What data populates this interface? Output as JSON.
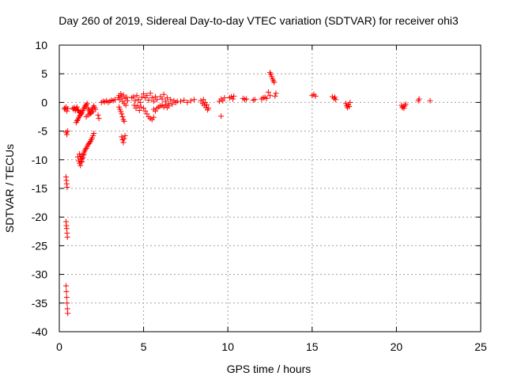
{
  "chart_data": {
    "type": "scatter",
    "title": "Day 260 of 2019, Sidereal Day-to-day VTEC variation (SDTVAR) for receiver ohi3",
    "xlabel": "GPS time / hours",
    "ylabel": "SDTVAR / TECUs",
    "xlim": [
      0,
      25
    ],
    "ylim": [
      -40,
      10
    ],
    "x_ticks": [
      0,
      5,
      10,
      15,
      20,
      25
    ],
    "x_tick_labels": [
      "0",
      "5",
      "10",
      "15",
      "20",
      "25"
    ],
    "y_ticks": [
      10,
      5,
      0,
      -5,
      -10,
      -15,
      -20,
      -25,
      -30,
      -35,
      -40
    ],
    "y_tick_labels": [
      "10",
      "5",
      "0",
      "-5",
      "-10",
      "-15",
      "-20",
      "-25",
      "-30",
      "-35",
      "-40"
    ],
    "grid": true,
    "marker": "+",
    "color": "#ff0000",
    "series": [
      {
        "name": "SDTVAR",
        "points": [
          [
            0.3,
            -1.0
          ],
          [
            0.35,
            -1.2
          ],
          [
            0.4,
            -0.8
          ],
          [
            0.45,
            -1.5
          ],
          [
            0.5,
            -1.1
          ],
          [
            0.4,
            -5.2
          ],
          [
            0.45,
            -5.6
          ],
          [
            0.5,
            -5.0
          ],
          [
            0.4,
            -13.0
          ],
          [
            0.42,
            -13.6
          ],
          [
            0.44,
            -14.2
          ],
          [
            0.46,
            -14.8
          ],
          [
            0.4,
            -20.8
          ],
          [
            0.42,
            -21.5
          ],
          [
            0.44,
            -22.0
          ],
          [
            0.46,
            -22.8
          ],
          [
            0.48,
            -23.5
          ],
          [
            0.4,
            -32.0
          ],
          [
            0.42,
            -33.0
          ],
          [
            0.44,
            -34.0
          ],
          [
            0.46,
            -35.0
          ],
          [
            0.48,
            -36.0
          ],
          [
            0.5,
            -36.8
          ],
          [
            0.8,
            -1.0
          ],
          [
            0.85,
            -1.2
          ],
          [
            0.9,
            -0.9
          ],
          [
            0.95,
            -1.4
          ],
          [
            1.0,
            -1.1
          ],
          [
            1.05,
            -0.8
          ],
          [
            1.1,
            -1.3
          ],
          [
            1.15,
            -1.5
          ],
          [
            1.2,
            -1.8
          ],
          [
            1.25,
            -1.6
          ],
          [
            1.3,
            -1.9
          ],
          [
            1.0,
            -3.5
          ],
          [
            1.05,
            -3.2
          ],
          [
            1.1,
            -3.0
          ],
          [
            1.15,
            -2.7
          ],
          [
            1.2,
            -2.4
          ],
          [
            1.25,
            -2.2
          ],
          [
            1.3,
            -2.0
          ],
          [
            1.35,
            -1.7
          ],
          [
            1.4,
            -1.4
          ],
          [
            1.45,
            -1.1
          ],
          [
            1.5,
            -0.8
          ],
          [
            1.55,
            -0.6
          ],
          [
            1.6,
            -0.4
          ],
          [
            1.65,
            -0.2
          ],
          [
            1.1,
            -9.5
          ],
          [
            1.15,
            -10.2
          ],
          [
            1.2,
            -10.6
          ],
          [
            1.25,
            -11.0
          ],
          [
            1.3,
            -10.4
          ],
          [
            1.35,
            -9.8
          ],
          [
            1.4,
            -9.2
          ],
          [
            1.45,
            -8.8
          ],
          [
            1.5,
            -8.5
          ],
          [
            1.55,
            -8.2
          ],
          [
            1.6,
            -8.0
          ],
          [
            1.65,
            -7.7
          ],
          [
            1.7,
            -7.4
          ],
          [
            1.75,
            -7.2
          ],
          [
            1.8,
            -7.0
          ],
          [
            1.85,
            -6.8
          ],
          [
            1.9,
            -6.5
          ],
          [
            1.95,
            -6.2
          ],
          [
            2.0,
            -5.8
          ],
          [
            2.05,
            -5.4
          ],
          [
            1.2,
            -9.0
          ],
          [
            1.25,
            -9.4
          ],
          [
            1.3,
            -9.9
          ],
          [
            1.35,
            -10.3
          ],
          [
            1.4,
            -9.6
          ],
          [
            1.45,
            -9.1
          ],
          [
            1.7,
            -1.0
          ],
          [
            1.75,
            -1.3
          ],
          [
            1.8,
            -1.6
          ],
          [
            1.85,
            -1.9
          ],
          [
            1.9,
            -1.5
          ],
          [
            1.95,
            -1.2
          ],
          [
            2.0,
            -0.9
          ],
          [
            2.05,
            -0.6
          ],
          [
            2.1,
            -0.9
          ],
          [
            2.15,
            -1.2
          ],
          [
            1.6,
            -2.5
          ],
          [
            1.7,
            -2.2
          ],
          [
            1.8,
            -2.0
          ],
          [
            1.9,
            -1.8
          ],
          [
            2.0,
            -1.6
          ],
          [
            2.3,
            -2.2
          ],
          [
            2.35,
            -2.8
          ],
          [
            2.5,
            0.0
          ],
          [
            2.6,
            0.2
          ],
          [
            2.7,
            0.1
          ],
          [
            2.8,
            0.3
          ],
          [
            2.9,
            0.0
          ],
          [
            3.0,
            0.2
          ],
          [
            3.1,
            0.4
          ],
          [
            3.2,
            0.3
          ],
          [
            3.3,
            0.5
          ],
          [
            3.5,
            0.8
          ],
          [
            3.55,
            1.2
          ],
          [
            3.6,
            0.5
          ],
          [
            3.65,
            1.5
          ],
          [
            3.7,
            1.0
          ],
          [
            3.75,
            0.2
          ],
          [
            3.8,
            1.3
          ],
          [
            3.85,
            -0.2
          ],
          [
            3.9,
            0.7
          ],
          [
            3.95,
            -0.5
          ],
          [
            4.0,
            0.9
          ],
          [
            4.05,
            0.3
          ],
          [
            3.55,
            -0.8
          ],
          [
            3.6,
            -1.2
          ],
          [
            3.65,
            -1.6
          ],
          [
            3.7,
            -2.0
          ],
          [
            3.75,
            -2.5
          ],
          [
            3.8,
            -3.0
          ],
          [
            3.85,
            -3.3
          ],
          [
            3.7,
            -6.0
          ],
          [
            3.75,
            -6.5
          ],
          [
            3.8,
            -7.0
          ],
          [
            3.85,
            -6.3
          ],
          [
            3.9,
            -5.8
          ],
          [
            4.3,
            0.8
          ],
          [
            4.4,
            1.0
          ],
          [
            4.5,
            0.3
          ],
          [
            4.6,
            1.2
          ],
          [
            4.7,
            0.5
          ],
          [
            4.8,
            0.0
          ],
          [
            4.9,
            0.9
          ],
          [
            4.45,
            -0.5
          ],
          [
            4.55,
            -1.0
          ],
          [
            4.65,
            -0.6
          ],
          [
            4.75,
            -1.4
          ],
          [
            4.85,
            -0.8
          ],
          [
            5.0,
            1.5
          ],
          [
            5.1,
            0.8
          ],
          [
            5.2,
            1.2
          ],
          [
            5.3,
            0.4
          ],
          [
            5.4,
            1.6
          ],
          [
            5.5,
            0.8
          ],
          [
            5.6,
            0.2
          ],
          [
            5.7,
            1.0
          ],
          [
            5.8,
            0.5
          ],
          [
            5.0,
            -1.0
          ],
          [
            5.1,
            -1.5
          ],
          [
            5.2,
            -2.0
          ],
          [
            5.3,
            -2.5
          ],
          [
            5.4,
            -2.8
          ],
          [
            5.5,
            -3.0
          ],
          [
            5.6,
            -2.6
          ],
          [
            5.6,
            -1.2
          ],
          [
            5.7,
            -1.5
          ],
          [
            5.8,
            -1.0
          ],
          [
            5.9,
            -0.8
          ],
          [
            6.0,
            -0.6
          ],
          [
            6.0,
            1.0
          ],
          [
            6.1,
            0.6
          ],
          [
            6.2,
            1.4
          ],
          [
            6.3,
            0.2
          ],
          [
            6.4,
            0.8
          ],
          [
            6.5,
            -0.2
          ],
          [
            6.6,
            0.5
          ],
          [
            6.7,
            -0.3
          ],
          [
            6.8,
            0.3
          ],
          [
            6.9,
            0.0
          ],
          [
            7.0,
            0.2
          ],
          [
            6.1,
            -0.5
          ],
          [
            6.2,
            -0.8
          ],
          [
            6.3,
            -0.4
          ],
          [
            6.4,
            -0.9
          ],
          [
            6.5,
            -0.6
          ],
          [
            7.2,
            0.2
          ],
          [
            7.4,
            0.4
          ],
          [
            7.6,
            0.0
          ],
          [
            7.8,
            0.3
          ],
          [
            8.0,
            0.5
          ],
          [
            8.4,
            0.3
          ],
          [
            8.5,
            -0.2
          ],
          [
            8.6,
            -0.5
          ],
          [
            8.7,
            -0.9
          ],
          [
            8.8,
            -1.3
          ],
          [
            8.55,
            0.5
          ],
          [
            8.65,
            0.0
          ],
          [
            8.75,
            -0.4
          ],
          [
            8.85,
            -1.0
          ],
          [
            9.6,
            -2.4
          ],
          [
            9.5,
            0.2
          ],
          [
            9.6,
            0.6
          ],
          [
            9.7,
            0.3
          ],
          [
            9.8,
            0.8
          ],
          [
            10.1,
            0.8
          ],
          [
            10.2,
            1.0
          ],
          [
            10.3,
            0.6
          ],
          [
            10.35,
            1.1
          ],
          [
            10.9,
            0.7
          ],
          [
            11.0,
            0.5
          ],
          [
            11.1,
            0.6
          ],
          [
            11.5,
            0.4
          ],
          [
            11.6,
            0.5
          ],
          [
            12.0,
            0.6
          ],
          [
            12.1,
            0.8
          ],
          [
            12.2,
            0.9
          ],
          [
            12.3,
            0.7
          ],
          [
            12.4,
            1.8
          ],
          [
            12.5,
            1.2
          ],
          [
            12.5,
            5.2
          ],
          [
            12.55,
            4.9
          ],
          [
            12.6,
            4.5
          ],
          [
            12.65,
            4.1
          ],
          [
            12.7,
            3.8
          ],
          [
            12.75,
            3.5
          ],
          [
            12.8,
            1.1
          ],
          [
            12.85,
            1.6
          ],
          [
            15.0,
            1.2
          ],
          [
            15.1,
            1.4
          ],
          [
            15.2,
            1.1
          ],
          [
            16.2,
            1.0
          ],
          [
            16.3,
            0.7
          ],
          [
            16.35,
            0.9
          ],
          [
            16.4,
            0.5
          ],
          [
            17.0,
            -0.2
          ],
          [
            17.05,
            -0.6
          ],
          [
            17.1,
            -0.9
          ],
          [
            17.15,
            -0.4
          ],
          [
            17.2,
            -0.7
          ],
          [
            17.25,
            0.0
          ],
          [
            20.3,
            -0.5
          ],
          [
            20.35,
            -0.9
          ],
          [
            20.4,
            -0.7
          ],
          [
            20.45,
            -1.0
          ],
          [
            20.5,
            -0.6
          ],
          [
            20.55,
            -0.3
          ],
          [
            21.3,
            0.3
          ],
          [
            21.35,
            0.6
          ],
          [
            22.0,
            0.3
          ]
        ]
      }
    ]
  }
}
